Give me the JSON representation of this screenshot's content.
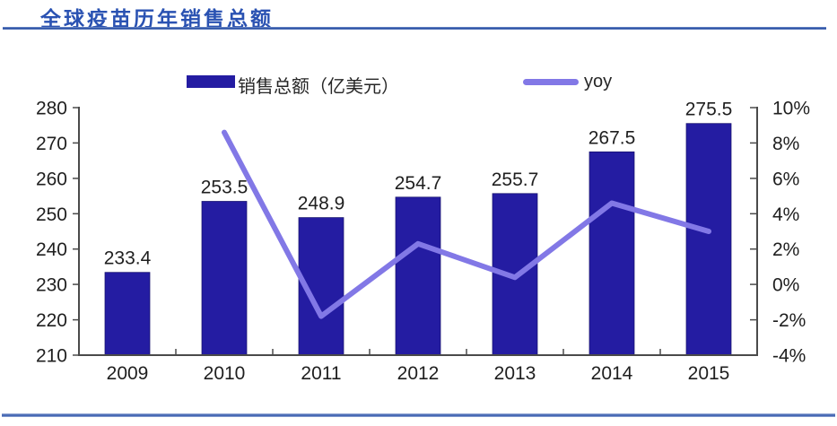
{
  "header": {
    "title": "全球疫苗历年销售总额"
  },
  "colors": {
    "bar": "#241CA2",
    "line": "#8278E6",
    "title_text": "#2A52B2",
    "divider_blue": "#3F63B0",
    "axis_line": "#4A4A4A",
    "label_text": "#1F1F1F"
  },
  "chart_data": {
    "type": "bar",
    "title": "全球疫苗历年销售总额",
    "categories": [
      "2009",
      "2010",
      "2011",
      "2012",
      "2013",
      "2014",
      "2015"
    ],
    "series": [
      {
        "name": "销售总额（亿美元）",
        "type": "bar",
        "axis": "left",
        "color": "#241CA2",
        "values": [
          233.4,
          253.5,
          248.9,
          254.7,
          255.7,
          267.5,
          275.5
        ],
        "data_labels": [
          "233.4",
          "253.5",
          "248.9",
          "254.7",
          "255.7",
          "267.5",
          "275.5"
        ]
      },
      {
        "name": "yoy",
        "type": "line",
        "axis": "right",
        "color": "#8278E6",
        "values": [
          null,
          8.6,
          -1.8,
          2.3,
          0.4,
          4.6,
          3.0
        ]
      }
    ],
    "left_axis": {
      "min": 210,
      "max": 280,
      "step": 10,
      "tick_labels": [
        "210",
        "220",
        "230",
        "240",
        "250",
        "260",
        "270",
        "280"
      ]
    },
    "right_axis": {
      "min": -4,
      "max": 10,
      "step": 2,
      "tick_labels": [
        "-4%",
        "-2%",
        "0%",
        "2%",
        "4%",
        "6%",
        "8%",
        "10%"
      ]
    },
    "legend_position": "top",
    "gridlines": false
  }
}
